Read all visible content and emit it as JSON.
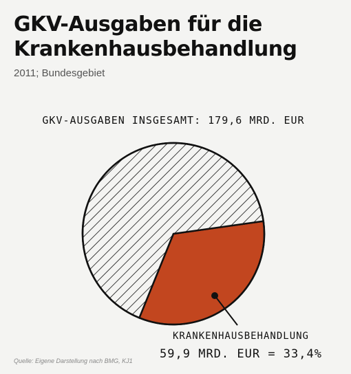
{
  "header": {
    "title": "GKV-Ausgaben für die Krankenhausbehandlung",
    "subtitle": "2011; Bundesgebiet"
  },
  "source": "Quelle: Eigene Darstellung nach BMG, KJ1",
  "colors": {
    "background": "#f4f4f2",
    "highlight_slice": "#c2461f",
    "hatch": "#111111"
  },
  "chart_data": {
    "type": "pie",
    "total_label": "GKV-AUSGABEN INSGESAMT: 179,6 MRD. EUR",
    "total": 179.6,
    "unit": "MRD. EUR",
    "slices": [
      {
        "value": 59.9,
        "percent": 33.4,
        "label_line1": "KRANKENHAUSBEHANDLUNG",
        "label_line2": "59,9 MRD. EUR = 33,4%",
        "style": "filled"
      },
      {
        "value": 119.7,
        "percent": 66.6,
        "style": "hatched"
      }
    ]
  }
}
